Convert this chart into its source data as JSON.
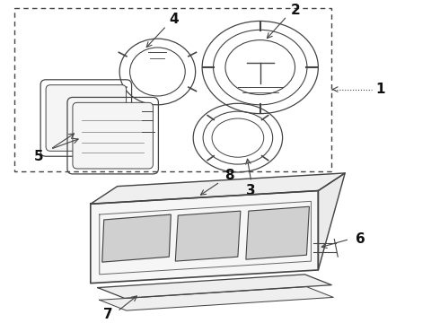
{
  "bg_color": "#ffffff",
  "line_color": "#444444",
  "label_color": "#111111",
  "fig_width": 4.9,
  "fig_height": 3.6,
  "dpi": 100,
  "label_fontsize": 11
}
